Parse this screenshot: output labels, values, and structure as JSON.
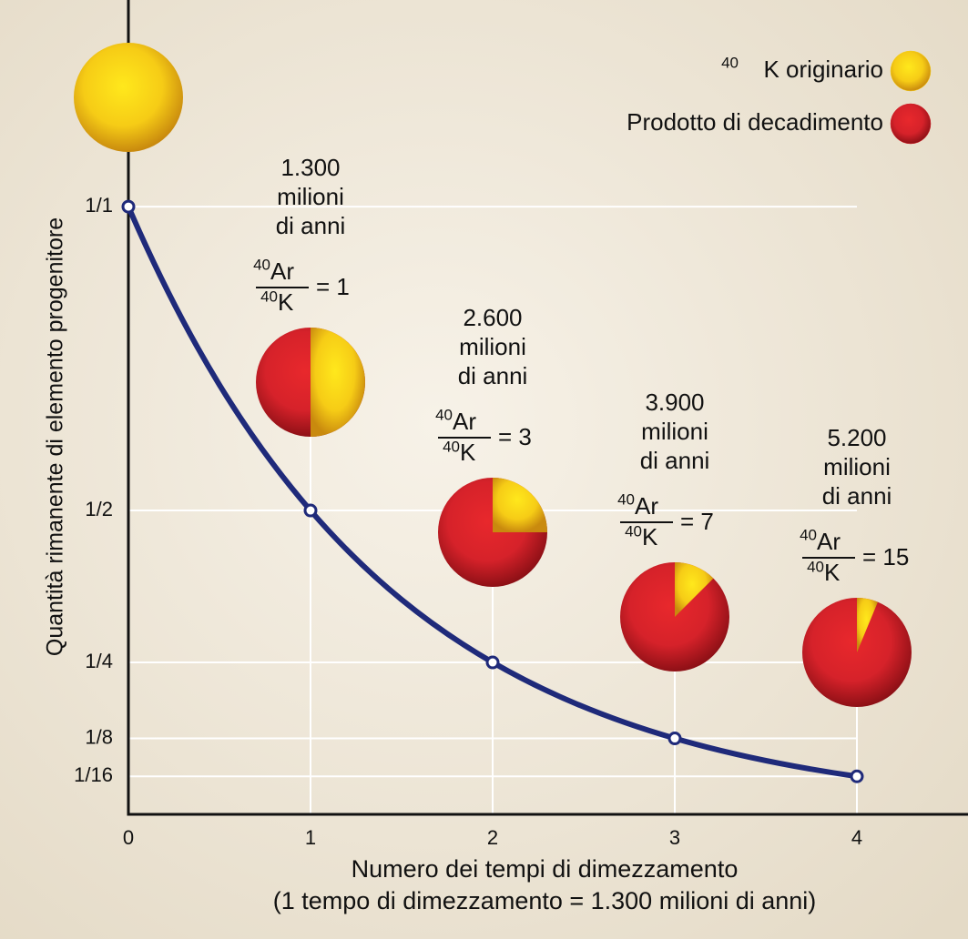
{
  "chart_data": {
    "type": "line",
    "y_axis_title": "Quantità rimanente di elemento progenitore",
    "x_axis_title": "Numero dei tempi di dimezzamento",
    "x_axis_subtitle": "(1 tempo di dimezzamento = 1.300 milioni di anni)",
    "x": [
      0,
      1,
      2,
      3,
      4
    ],
    "values": [
      1,
      0.5,
      0.25,
      0.125,
      0.0625
    ],
    "color": "#1f2a7a",
    "xlim": [
      0,
      4.61
    ],
    "ylim": [
      0,
      1.34
    ],
    "xticks": [
      0,
      1,
      2,
      3,
      4
    ],
    "yticks": [
      {
        "value": 1,
        "label": "1/1"
      },
      {
        "value": 0.5,
        "label": "1/2"
      },
      {
        "value": 0.25,
        "label": "1/4"
      },
      {
        "value": 0.125,
        "label": "1/8"
      },
      {
        "value": 0.0625,
        "label": "1/16"
      }
    ],
    "grid": true,
    "legend": [
      {
        "isotope_mass": "40",
        "name": "K originario",
        "color": "#f7d21a"
      },
      {
        "name": "Prodotto di decadimento",
        "color": "#d8242a"
      }
    ],
    "pies": [
      {
        "time": "1.300",
        "unit_lines": [
          "milioni",
          "di anni"
        ],
        "mass": "40",
        "numerator": "Ar",
        "denominator": "K",
        "ratio_label": "= 1"
      },
      {
        "time": "2.600",
        "unit_lines": [
          "milioni",
          "di anni"
        ],
        "mass": "40",
        "numerator": "Ar",
        "denominator": "K",
        "ratio_label": "= 3"
      },
      {
        "time": "3.900",
        "unit_lines": [
          "milioni",
          "di anni"
        ],
        "mass": "40",
        "numerator": "Ar",
        "denominator": "K",
        "ratio_label": "= 7"
      },
      {
        "time": "5.200",
        "unit_lines": [
          "milioni",
          "di anni"
        ],
        "mass": "40",
        "numerator": "Ar",
        "denominator": "K",
        "ratio_label": "= 15"
      }
    ]
  }
}
